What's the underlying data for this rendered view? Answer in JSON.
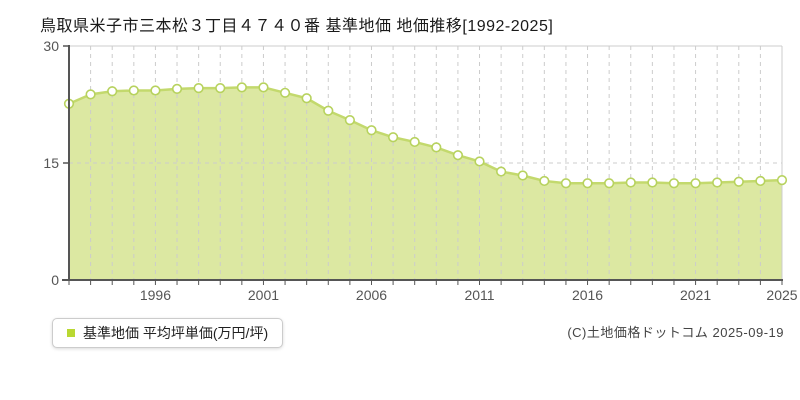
{
  "page": {
    "title": "鳥取県米子市三本松３丁目４７４０番 基準地価 地価推移[1992-2025]",
    "footer_credit": "(C)土地価格ドットコム 2025-09-19"
  },
  "legend": {
    "label": "基準地価 平均坪単価(万円/坪)"
  },
  "chart_data": {
    "type": "area",
    "title": "鳥取県米子市三本松３丁目４７４０番 基準地価 地価推移[1992-2025]",
    "x": [
      1992,
      1993,
      1994,
      1995,
      1996,
      1997,
      1998,
      1999,
      2000,
      2001,
      2002,
      2003,
      2004,
      2005,
      2006,
      2007,
      2008,
      2009,
      2010,
      2011,
      2012,
      2013,
      2014,
      2015,
      2016,
      2017,
      2018,
      2019,
      2020,
      2021,
      2022,
      2023,
      2024,
      2025
    ],
    "series": [
      {
        "name": "基準地価 平均坪単価(万円/坪)",
        "values": [
          22.6,
          23.8,
          24.2,
          24.3,
          24.3,
          24.5,
          24.6,
          24.6,
          24.7,
          24.7,
          24.0,
          23.3,
          21.7,
          20.5,
          19.2,
          18.3,
          17.7,
          17.0,
          16.0,
          15.2,
          13.9,
          13.4,
          12.7,
          12.4,
          12.4,
          12.4,
          12.5,
          12.5,
          12.4,
          12.4,
          12.5,
          12.6,
          12.7,
          12.8
        ]
      }
    ],
    "xlabel": "",
    "ylabel": "",
    "ylim": [
      0,
      30
    ],
    "y_ticks": [
      30,
      15,
      0
    ],
    "x_ticks": [
      1996,
      2001,
      2006,
      2011,
      2016,
      2021,
      2025
    ],
    "grid": true,
    "legend_position": "bottom-left",
    "colors": {
      "area_fill": "#dce8a2",
      "line": "#c3d96d",
      "marker_fill": "#ffffff",
      "marker_stroke": "#b7d25e",
      "legend_marker": "#b9d832",
      "grid": "#cccccc",
      "plot_border": "#cccccc",
      "axis": "#555555",
      "tick_label": "#555555"
    }
  }
}
